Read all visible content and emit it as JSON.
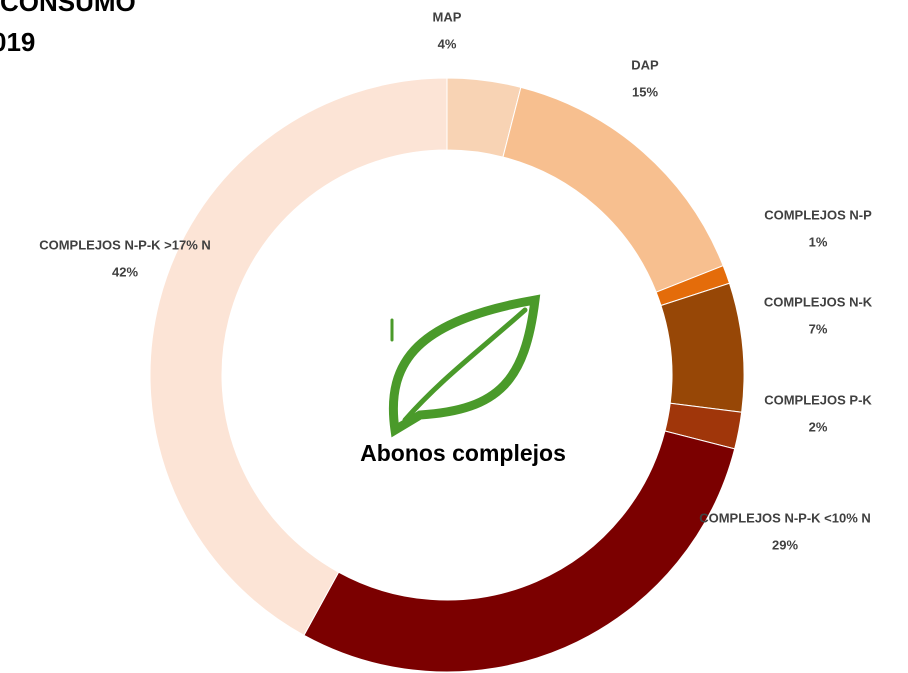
{
  "chart_data": {
    "type": "pie",
    "donut": true,
    "title": [
      "EL CONSUMO",
      "019"
    ],
    "center_label": "Abonos complejos",
    "categories": [
      "MAP",
      "DAP",
      "COMPLEJOS N-P",
      "COMPLEJOS N-K",
      "COMPLEJOS P-K",
      "COMPLEJOS N-P-K <10% N",
      "COMPLEJOS N-P-K >17% N"
    ],
    "values": [
      4,
      15,
      1,
      7,
      2,
      29,
      42
    ],
    "value_labels": [
      "4%",
      "15%",
      "1%",
      "7%",
      "2%",
      "29%",
      "42%"
    ],
    "colors": [
      "#f8d3b4",
      "#f7bf8f",
      "#e46c0a",
      "#974706",
      "#a0360a",
      "#7b0000",
      "#fce4d6"
    ]
  }
}
